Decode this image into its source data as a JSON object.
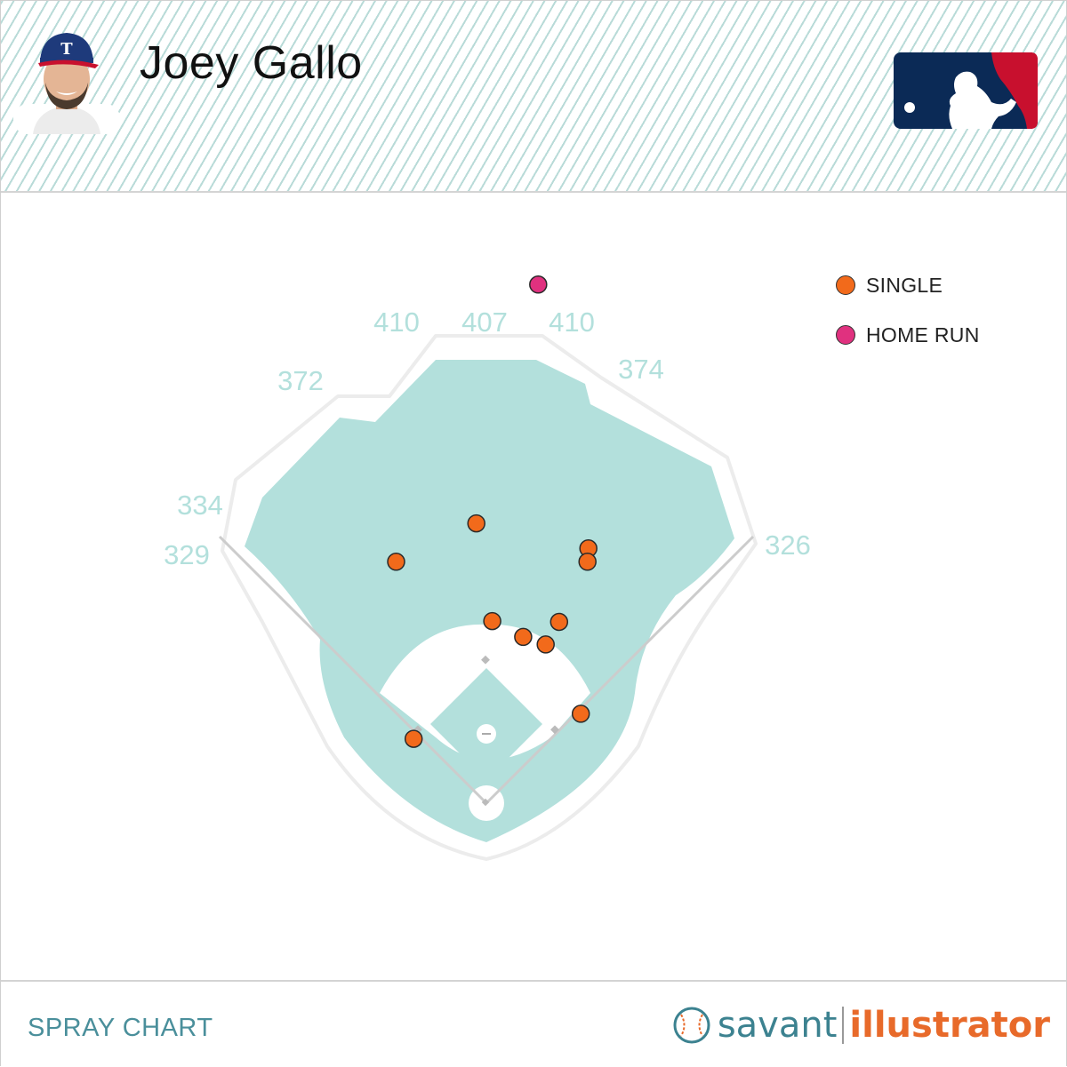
{
  "header": {
    "player_name": "Joey Gallo",
    "headshot_icon": "player-headshot-icon",
    "logo_icon": "mlb-logo-icon"
  },
  "footer": {
    "label": "SPRAY CHART",
    "brand_part1": "savant",
    "brand_part2": "illustrator",
    "brand_icon": "baseball-icon"
  },
  "colors": {
    "field": "#b3e0dc",
    "single": "#f26a1b",
    "home_run": "#e0317f",
    "distance_label": "#b3e0dc",
    "brand_savant": "#3c8290",
    "brand_illustrator": "#e86a2a"
  },
  "chart_data": {
    "type": "scatter",
    "title": "",
    "legend_position": "top-right",
    "legend": [
      {
        "name": "SINGLE",
        "color": "#f26a1b"
      },
      {
        "name": "HOME RUN",
        "color": "#e0317f"
      }
    ],
    "wall_distances": [
      "329",
      "334",
      "372",
      "410",
      "407",
      "410",
      "374",
      "326"
    ],
    "series": [
      {
        "name": "SINGLE",
        "color": "#f26a1b",
        "points": [
          {
            "x": -87,
            "y": 77
          },
          {
            "x": 113,
            "y": 107
          },
          {
            "x": -108,
            "y": 289
          },
          {
            "x": -12,
            "y": 335
          },
          {
            "x": 122,
            "y": 305
          },
          {
            "x": 121,
            "y": 289
          },
          {
            "x": 7,
            "y": 218
          },
          {
            "x": 44,
            "y": 199
          },
          {
            "x": 71,
            "y": 190
          },
          {
            "x": 87,
            "y": 217
          }
        ]
      },
      {
        "name": "HOME RUN",
        "color": "#e0317f",
        "points": [
          {
            "x": 62,
            "y": 621
          }
        ]
      }
    ]
  }
}
